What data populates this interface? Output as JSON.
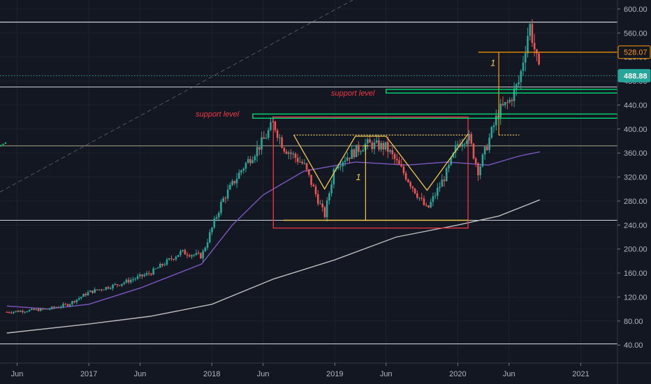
{
  "chart_data": {
    "type": "candlestick",
    "y_ticks": [
      40,
      80,
      120,
      160,
      200,
      240,
      280,
      320,
      360,
      400,
      440,
      480,
      520,
      560,
      600
    ],
    "y_tick_labels": [
      "40.00",
      "80.00",
      "120.00",
      "160.00",
      "200.00",
      "240.00",
      "280.00",
      "320.00",
      "360.00",
      "400.00",
      "440.00",
      "480.00",
      "520.00",
      "560.00",
      "600.00"
    ],
    "ylim": [
      10,
      615
    ],
    "x_ticks": [
      "2016-06",
      "2017-01",
      "2017-06",
      "2018-01",
      "2018-06",
      "2019-01",
      "2019-06",
      "2020-01",
      "2020-06",
      "2021-01"
    ],
    "x_tick_labels": [
      "Jun",
      "2017",
      "Jun",
      "2018",
      "Jun",
      "2019",
      "Jun",
      "2020",
      "Jun",
      "2021"
    ],
    "xlim": [
      "2016-05",
      "2021-04"
    ],
    "price_labels": [
      {
        "value": 528.07,
        "text": "528.07",
        "color": "#ff9800"
      },
      {
        "value": 488.88,
        "text": "488.88",
        "color": "#26a69a"
      }
    ],
    "candles_keypoints": [
      [
        "2016-05",
        95
      ],
      [
        "2016-09",
        100
      ],
      [
        "2016-11",
        108
      ],
      [
        "2017-01",
        128
      ],
      [
        "2017-04",
        142
      ],
      [
        "2017-07",
        160
      ],
      [
        "2017-10",
        195
      ],
      [
        "2017-12",
        188
      ],
      [
        "2018-02",
        280
      ],
      [
        "2018-04",
        335
      ],
      [
        "2018-06",
        380
      ],
      [
        "2018-07",
        410
      ],
      [
        "2018-08",
        370
      ],
      [
        "2018-10",
        340
      ],
      [
        "2018-12",
        255
      ],
      [
        "2019-01",
        340
      ],
      [
        "2019-04",
        375
      ],
      [
        "2019-06",
        370
      ],
      [
        "2019-08",
        320
      ],
      [
        "2019-10",
        265
      ],
      [
        "2019-12",
        330
      ],
      [
        "2020-01",
        375
      ],
      [
        "2020-02",
        390
      ],
      [
        "2020-03",
        330
      ],
      [
        "2020-04",
        380
      ],
      [
        "2020-05",
        430
      ],
      [
        "2020-06",
        445
      ],
      [
        "2020-07",
        480
      ],
      [
        "2020-08",
        575
      ],
      [
        "2020-09",
        488.88
      ]
    ],
    "series": [
      {
        "name": "",
        "color": "#7e57c2",
        "points": [
          [
            "2016-05",
            105
          ],
          [
            "2016-09",
            100
          ],
          [
            "2017-01",
            108
          ],
          [
            "2017-06",
            135
          ],
          [
            "2017-12",
            175
          ],
          [
            "2018-03",
            240
          ],
          [
            "2018-06",
            290
          ],
          [
            "2018-10",
            330
          ],
          [
            "2019-03",
            345
          ],
          [
            "2019-08",
            340
          ],
          [
            "2019-12",
            345
          ],
          [
            "2020-04",
            340
          ],
          [
            "2020-07",
            355
          ],
          [
            "2020-09",
            362
          ]
        ]
      },
      {
        "name": "",
        "color": "#bdbdbd",
        "points": [
          [
            "2016-05",
            60
          ],
          [
            "2017-01",
            75
          ],
          [
            "2017-07",
            88
          ],
          [
            "2018-01",
            108
          ],
          [
            "2018-07",
            150
          ],
          [
            "2019-01",
            182
          ],
          [
            "2019-07",
            220
          ],
          [
            "2020-01",
            240
          ],
          [
            "2020-05",
            255
          ],
          [
            "2020-09",
            282
          ]
        ]
      }
    ],
    "annotations": {
      "support_label": "support level",
      "measure_label": "1",
      "box": {
        "x": [
          "2018-07",
          "2020-02"
        ],
        "y": [
          235,
          420
        ]
      },
      "neckline": {
        "x": [
          "2018-09",
          "2020-02"
        ],
        "y": 390,
        "color": "#f2c94c"
      },
      "base_line": {
        "x": [
          "2018-08",
          "2020-02"
        ],
        "y": 248,
        "color": "#f2c94c"
      },
      "support_lines": [
        {
          "x": [
            "2018-05",
            "2021-04"
          ],
          "y": [
            418,
            425
          ],
          "color": "#00e676",
          "label": "support level"
        },
        {
          "x": [
            "2019-06",
            "2021-04"
          ],
          "y": [
            460,
            466
          ],
          "color": "#00e676",
          "label": "support level"
        }
      ],
      "horizontal_lines": [
        {
          "y": 578,
          "color": "#ffffff"
        },
        {
          "y": 488.88,
          "color": "#26a69a",
          "style": "dotted"
        },
        {
          "y": 470,
          "color": "#d1d4dc"
        },
        {
          "y": 372,
          "color": "#a5a88a"
        },
        {
          "y": 248,
          "color": "#d1d4dc"
        },
        {
          "y": 42,
          "color": "#d1d4dc"
        }
      ],
      "target_line": {
        "x": [
          "2020-03",
          "2021-04"
        ],
        "y": 528.07,
        "color": "#ff9800"
      }
    }
  }
}
